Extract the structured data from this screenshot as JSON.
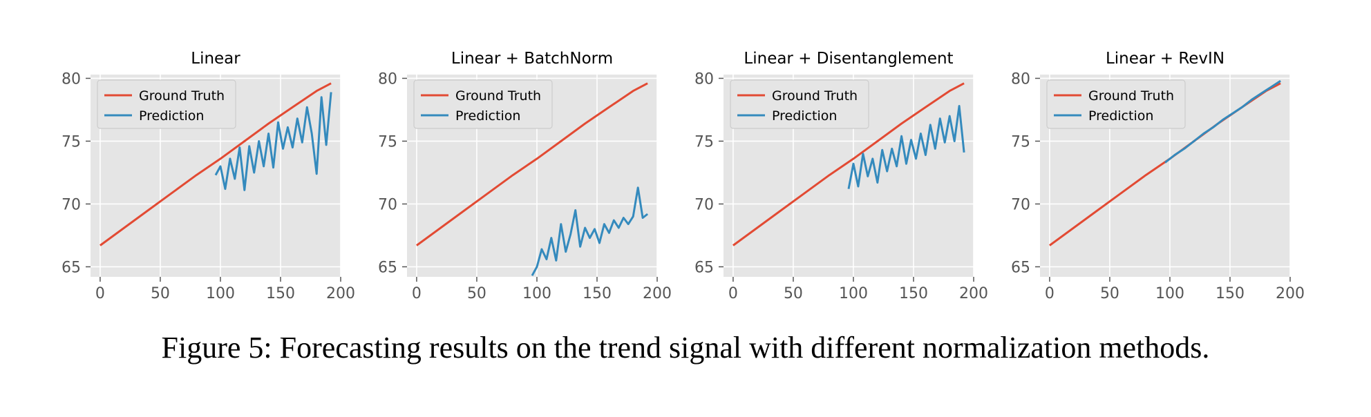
{
  "caption": "Figure 5: Forecasting results on the trend signal with different normalization methods.",
  "colors": {
    "ground_truth": "#e24a33",
    "prediction": "#348abd",
    "panel_bg": "#e5e5e5",
    "grid": "#ffffff"
  },
  "chart_data": [
    {
      "type": "line",
      "title": "Linear",
      "xlim": [
        -8,
        200
      ],
      "ylim": [
        64.2,
        80.3
      ],
      "xticks": [
        0,
        50,
        100,
        150,
        200
      ],
      "yticks": [
        65,
        70,
        75,
        80
      ],
      "legend": "top-left",
      "grid": true,
      "series": [
        {
          "name": "Ground Truth",
          "x": [
            0,
            20,
            40,
            60,
            80,
            100,
            120,
            140,
            160,
            180,
            192
          ],
          "y": [
            66.7,
            68.1,
            69.5,
            70.9,
            72.3,
            73.6,
            75.0,
            76.4,
            77.7,
            79.0,
            79.6
          ]
        },
        {
          "name": "Prediction",
          "x": [
            96,
            100,
            104,
            108,
            112,
            116,
            120,
            124,
            128,
            132,
            136,
            140,
            144,
            148,
            152,
            156,
            160,
            164,
            168,
            172,
            176,
            180,
            184,
            188,
            192
          ],
          "y": [
            72.3,
            73.0,
            71.2,
            73.6,
            72.0,
            74.5,
            71.1,
            74.6,
            72.5,
            75.0,
            73.0,
            75.6,
            72.9,
            76.5,
            74.4,
            76.1,
            74.5,
            76.8,
            74.9,
            77.7,
            75.6,
            72.4,
            78.5,
            74.7,
            78.9
          ]
        }
      ]
    },
    {
      "type": "line",
      "title": "Linear + BatchNorm",
      "xlim": [
        -8,
        200
      ],
      "ylim": [
        64.2,
        80.3
      ],
      "xticks": [
        0,
        50,
        100,
        150,
        200
      ],
      "yticks": [
        65,
        70,
        75,
        80
      ],
      "legend": "top-left",
      "grid": true,
      "series": [
        {
          "name": "Ground Truth",
          "x": [
            0,
            20,
            40,
            60,
            80,
            100,
            120,
            140,
            160,
            180,
            192
          ],
          "y": [
            66.7,
            68.1,
            69.5,
            70.9,
            72.3,
            73.6,
            75.0,
            76.4,
            77.7,
            79.0,
            79.6
          ]
        },
        {
          "name": "Prediction",
          "x": [
            96,
            100,
            104,
            108,
            112,
            116,
            120,
            124,
            128,
            132,
            136,
            140,
            144,
            148,
            152,
            156,
            160,
            164,
            168,
            172,
            176,
            180,
            184,
            188,
            192
          ],
          "y": [
            64.3,
            65.0,
            66.4,
            65.6,
            67.3,
            65.5,
            68.4,
            66.2,
            67.6,
            69.5,
            66.6,
            68.1,
            67.3,
            68.0,
            66.9,
            68.4,
            67.7,
            68.7,
            68.1,
            68.9,
            68.4,
            69.0,
            71.3,
            68.9,
            69.2
          ]
        }
      ]
    },
    {
      "type": "line",
      "title": "Linear + Disentanglement",
      "xlim": [
        -8,
        200
      ],
      "ylim": [
        64.2,
        80.3
      ],
      "xticks": [
        0,
        50,
        100,
        150,
        200
      ],
      "yticks": [
        65,
        70,
        75,
        80
      ],
      "legend": "top-left",
      "grid": true,
      "series": [
        {
          "name": "Ground Truth",
          "x": [
            0,
            20,
            40,
            60,
            80,
            100,
            120,
            140,
            160,
            180,
            192
          ],
          "y": [
            66.7,
            68.1,
            69.5,
            70.9,
            72.3,
            73.6,
            75.0,
            76.4,
            77.7,
            79.0,
            79.6
          ]
        },
        {
          "name": "Prediction",
          "x": [
            96,
            100,
            104,
            108,
            112,
            116,
            120,
            124,
            128,
            132,
            136,
            140,
            144,
            148,
            152,
            156,
            160,
            164,
            168,
            172,
            176,
            180,
            184,
            188,
            192
          ],
          "y": [
            71.2,
            73.2,
            71.4,
            74.0,
            72.2,
            73.6,
            71.7,
            74.3,
            72.6,
            74.4,
            73.0,
            75.4,
            73.2,
            75.1,
            73.6,
            75.6,
            73.9,
            76.3,
            74.4,
            76.8,
            74.9,
            77.0,
            75.0,
            77.8,
            74.1
          ]
        }
      ]
    },
    {
      "type": "line",
      "title": "Linear + RevIN",
      "xlim": [
        -8,
        200
      ],
      "ylim": [
        64.2,
        80.3
      ],
      "xticks": [
        0,
        50,
        100,
        150,
        200
      ],
      "yticks": [
        65,
        70,
        75,
        80
      ],
      "legend": "top-left",
      "grid": true,
      "series": [
        {
          "name": "Ground Truth",
          "x": [
            0,
            20,
            40,
            60,
            80,
            100,
            120,
            140,
            160,
            180,
            192
          ],
          "y": [
            66.7,
            68.1,
            69.5,
            70.9,
            72.3,
            73.6,
            75.0,
            76.4,
            77.7,
            79.0,
            79.6
          ]
        },
        {
          "name": "Prediction",
          "x": [
            96,
            104,
            112,
            120,
            128,
            136,
            144,
            152,
            160,
            168,
            176,
            184,
            192
          ],
          "y": [
            73.3,
            73.9,
            74.4,
            75.0,
            75.6,
            76.1,
            76.7,
            77.2,
            77.7,
            78.3,
            78.8,
            79.3,
            79.8
          ]
        }
      ]
    }
  ]
}
